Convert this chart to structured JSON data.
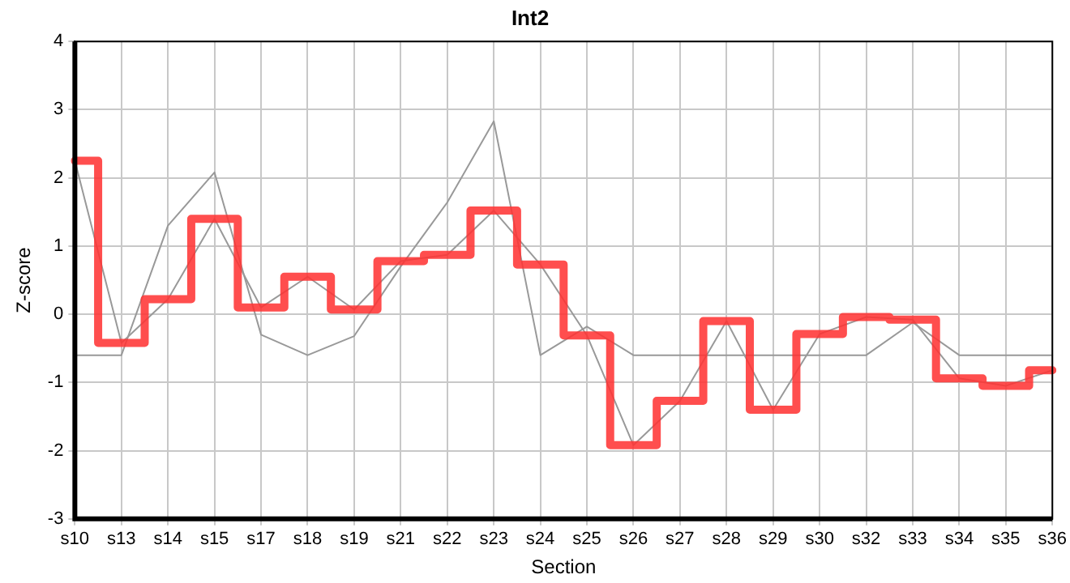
{
  "chart_data": {
    "type": "line",
    "title": "Int2",
    "xlabel": "Section",
    "ylabel": "Z-score",
    "categories": [
      "s10",
      "s13",
      "s14",
      "s15",
      "s17",
      "s18",
      "s19",
      "s21",
      "s22",
      "s23",
      "s24",
      "s25",
      "s26",
      "s27",
      "s28",
      "s29",
      "s30",
      "s32",
      "s33",
      "s34",
      "s35",
      "s36"
    ],
    "series": [
      {
        "type": "line",
        "color": "#999999",
        "values": [
          -0.6,
          -0.6,
          1.3,
          2.08,
          -0.3,
          -0.6,
          -0.32,
          0.7,
          1.64,
          2.83,
          -0.6,
          -0.18,
          -0.6,
          -0.6,
          -0.6,
          -0.6,
          -0.6,
          -0.6,
          -0.12,
          -0.6,
          -0.6,
          -0.6
        ]
      },
      {
        "type": "line",
        "color": "#999999",
        "values": [
          2.25,
          -0.42,
          0.22,
          1.4,
          0.1,
          0.55,
          0.07,
          0.78,
          0.87,
          1.52,
          0.73,
          -0.31,
          -1.92,
          -1.27,
          -0.1,
          -1.4,
          -0.29,
          -0.04,
          -0.08,
          -0.94,
          -1.05,
          -0.82
        ]
      },
      {
        "type": "step",
        "color": "#ff3333",
        "values": [
          2.25,
          -0.42,
          0.22,
          1.4,
          0.1,
          0.55,
          0.07,
          0.78,
          0.87,
          1.52,
          0.73,
          -0.31,
          -1.92,
          -1.27,
          -0.1,
          -1.4,
          -0.29,
          -0.04,
          -0.08,
          -0.94,
          -1.05,
          -0.82
        ]
      }
    ],
    "ylim": [
      -3,
      4
    ],
    "yticks": [
      -3,
      -2,
      -1,
      0,
      1,
      2,
      3,
      4
    ],
    "grid": true,
    "legend": false
  }
}
